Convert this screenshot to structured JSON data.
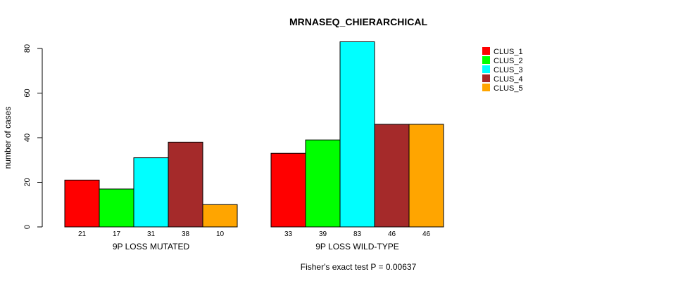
{
  "chart_data": {
    "type": "bar",
    "title": "MRNASEQ_CHIERARCHICAL",
    "ylabel": "number of cases",
    "xlabel": "",
    "footer": "Fisher's exact test P = 0.00637",
    "ylim": [
      0,
      85
    ],
    "yticks": [
      0,
      20,
      40,
      60,
      80
    ],
    "groups": [
      "9P LOSS MUTATED",
      "9P LOSS WILD-TYPE"
    ],
    "series": [
      {
        "name": "CLUS_1",
        "color": "#FF0000",
        "values": [
          21,
          33
        ]
      },
      {
        "name": "CLUS_2",
        "color": "#00FF00",
        "values": [
          17,
          39
        ]
      },
      {
        "name": "CLUS_3",
        "color": "#00FFFF",
        "values": [
          31,
          83
        ]
      },
      {
        "name": "CLUS_4",
        "color": "#A52A2A",
        "values": [
          38,
          46
        ]
      },
      {
        "name": "CLUS_5",
        "color": "#FFA500",
        "values": [
          10,
          46
        ]
      }
    ],
    "legend_position": "top-right"
  }
}
